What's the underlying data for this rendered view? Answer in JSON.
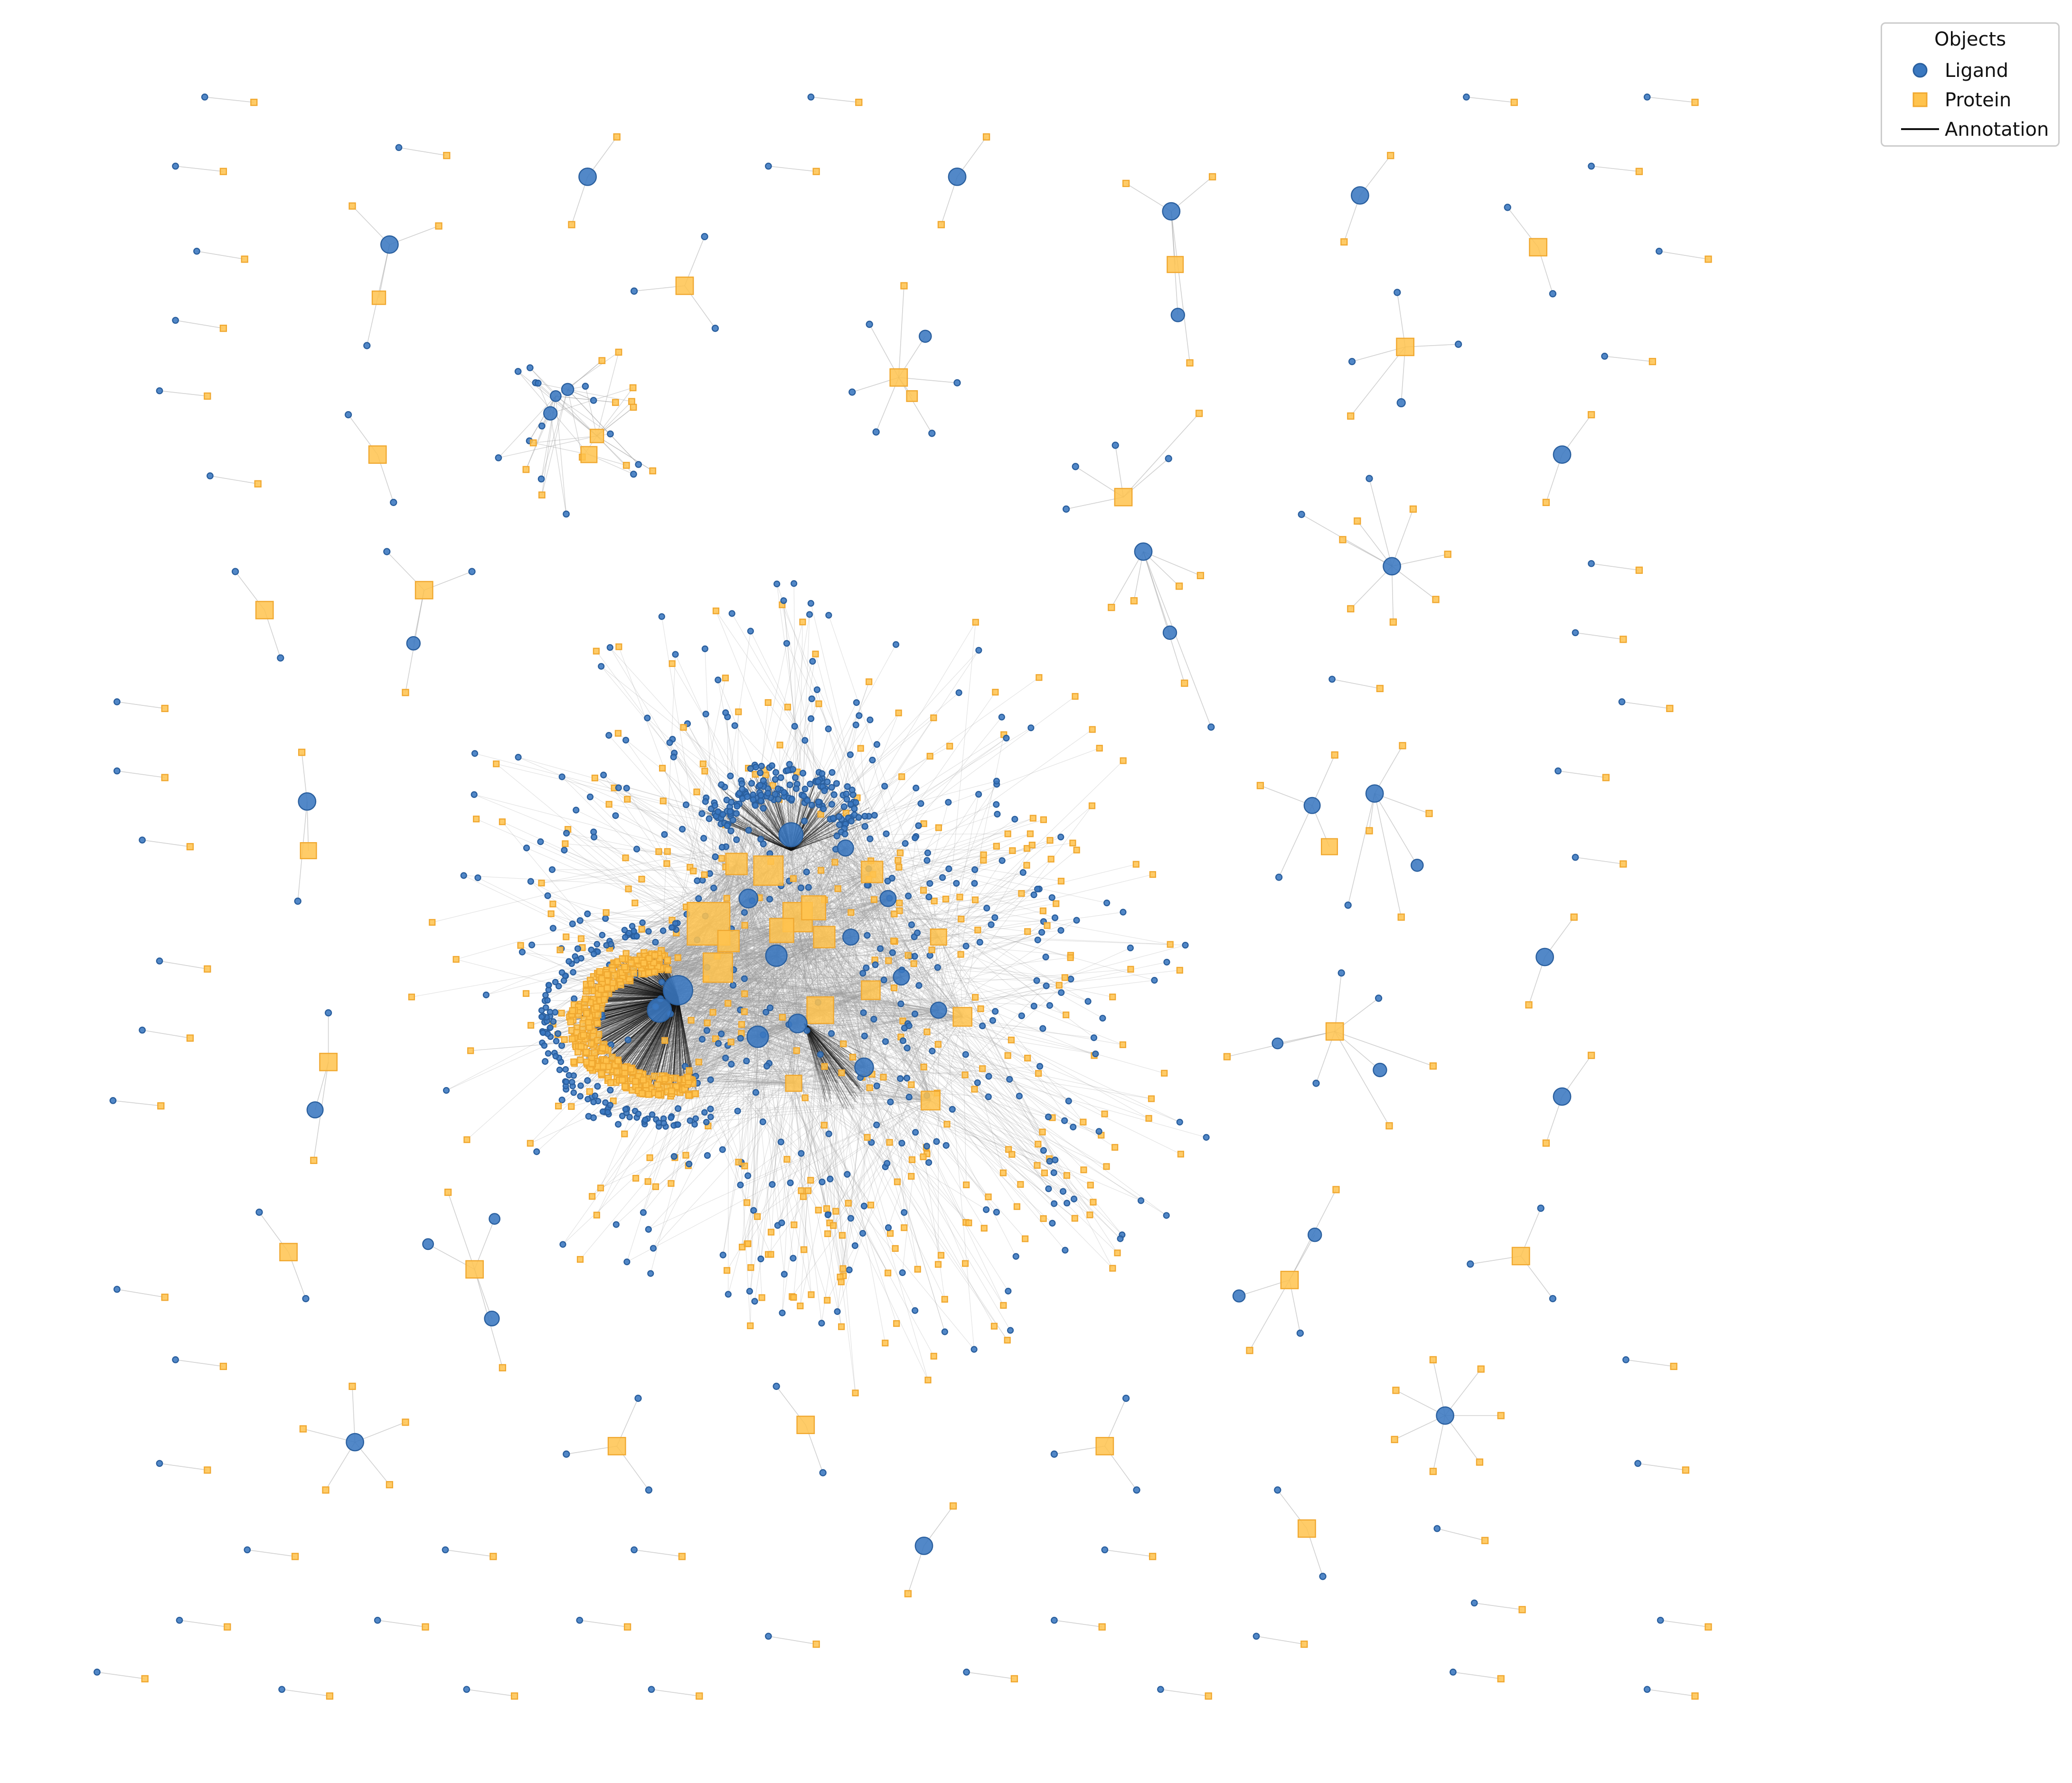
{
  "legend": {
    "title": "Objects",
    "ligand_label": "Ligand",
    "protein_label": "Protein",
    "annotation_label": "Annotation"
  },
  "colors": {
    "ligand": "#3a78c0",
    "ligand_edge": "#2a5f9e",
    "protein": "#ffc34d",
    "protein_edge": "#f0a830",
    "edge": "#9a9a9a",
    "dense_edge": "#111111"
  },
  "icons": {
    "ligand": "circle-marker",
    "protein": "square-marker",
    "annotation": "line-marker"
  }
}
